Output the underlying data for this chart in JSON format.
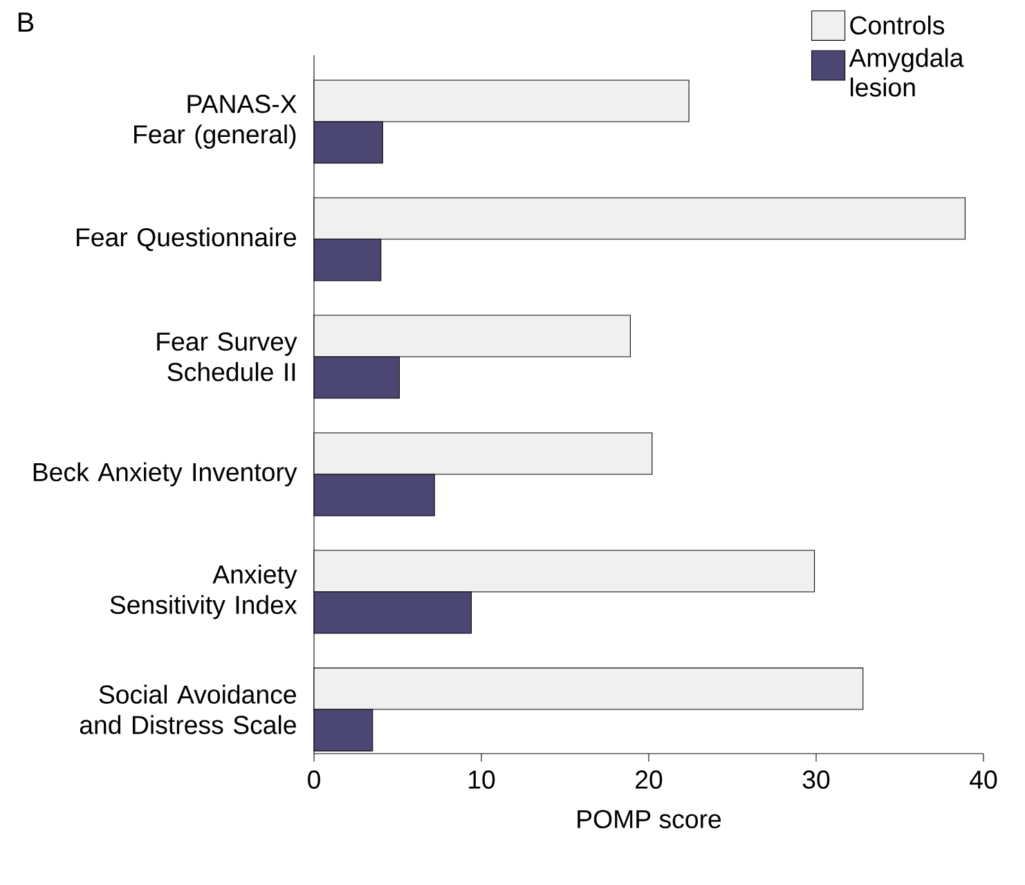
{
  "chart_data": {
    "type": "bar",
    "orientation": "horizontal",
    "categories": [
      "PANAS-X Fear (general)",
      "Fear Questionnaire",
      "Fear Survey Schedule II",
      "Beck Anxiety Inventory",
      "Anxiety Sensitivity Index",
      "Social Avoidance and Distress Scale"
    ],
    "series": [
      {
        "name": "Controls",
        "color": "#f0f0f0",
        "values": [
          22.4,
          38.9,
          18.9,
          20.2,
          29.9,
          32.8
        ]
      },
      {
        "name": "Amygdala lesion",
        "color": "#4b4672",
        "values": [
          4.1,
          4.0,
          5.1,
          7.2,
          9.4,
          3.5
        ]
      }
    ],
    "xlabel": "POMP score",
    "xlim": [
      0,
      40
    ],
    "xticks": [
      0,
      10,
      20,
      30,
      40
    ],
    "legend": "top right",
    "grid": false,
    "annotations": [
      "B"
    ]
  }
}
